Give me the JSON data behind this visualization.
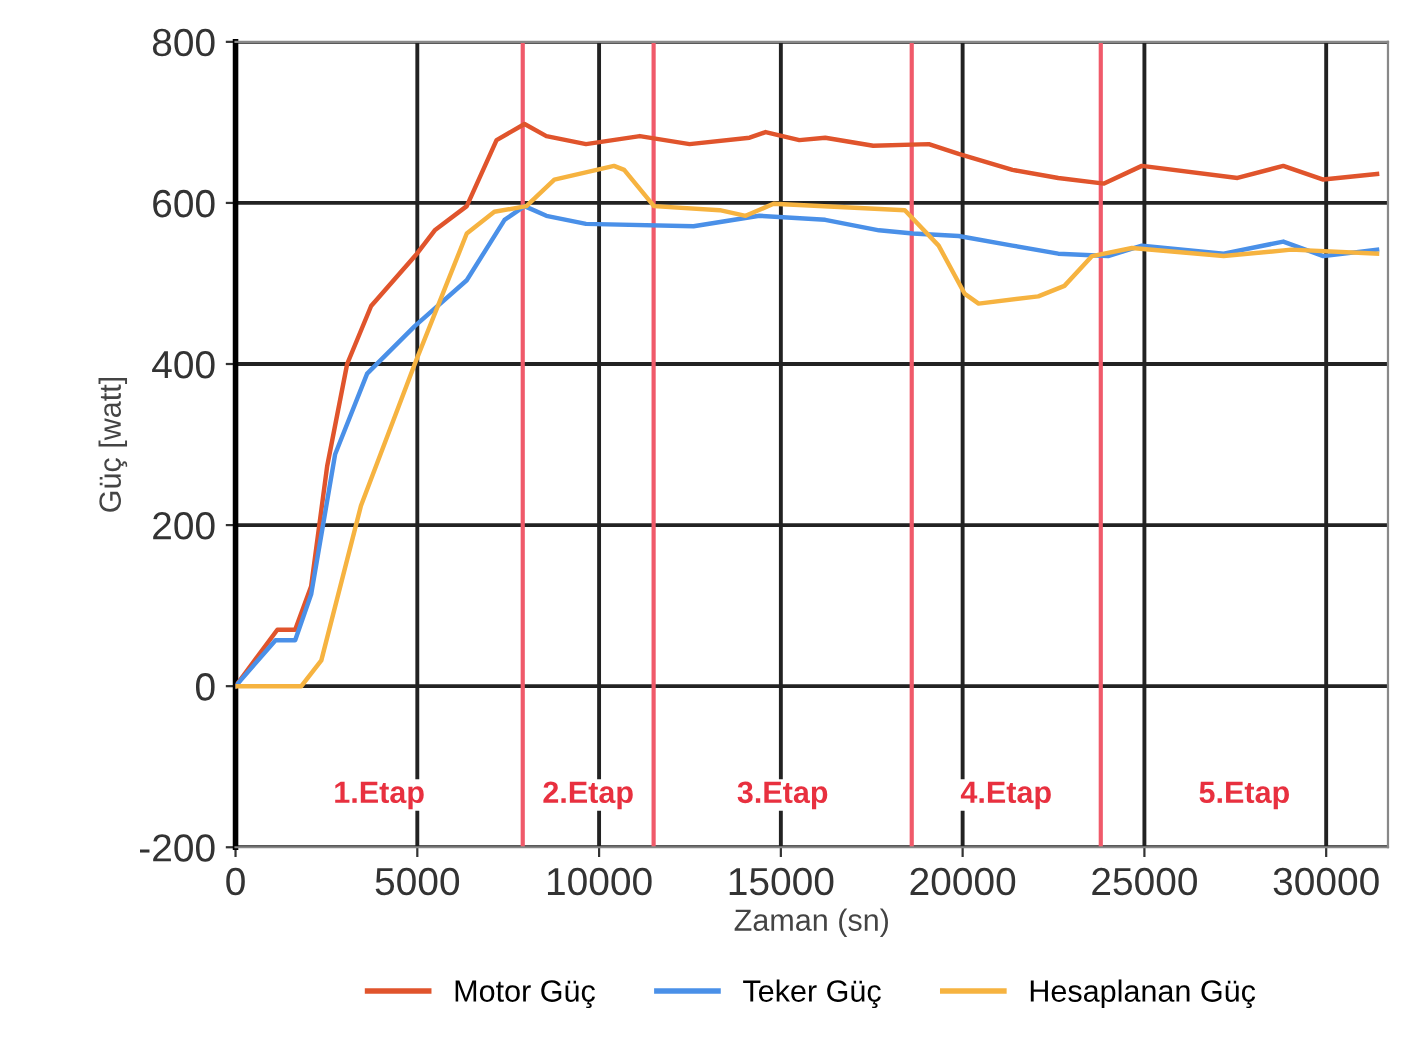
{
  "chart_data": {
    "type": "line",
    "xlabel": "Zaman (sn)",
    "ylabel": "Güç [watt]",
    "xlim": [
      0,
      31700
    ],
    "xticks": [
      0,
      5000,
      10000,
      15000,
      20000,
      25000,
      30000
    ],
    "ylim": [
      -200,
      800
    ],
    "yticks": [
      -200,
      0,
      200,
      400,
      600,
      800
    ],
    "grid": true,
    "legend": "bottom",
    "line_style": "solid",
    "marker": "none",
    "series": [
      {
        "name": "Motor Güç",
        "color": "#e0542c",
        "x": [
          0,
          1150,
          1640,
          2080,
          2520,
          3070,
          3730,
          4990,
          5480,
          6360,
          7180,
          7950,
          8550,
          9640,
          11120,
          12490,
          14140,
          14580,
          15510,
          16220,
          17540,
          19070,
          19890,
          21370,
          22630,
          23890,
          24930,
          27560,
          28820,
          29920,
          31400
        ],
        "values": [
          0,
          70,
          70,
          124,
          273,
          400,
          472,
          537,
          566,
          596,
          678,
          698,
          683,
          673,
          683,
          673,
          681,
          688,
          678,
          681,
          671,
          673,
          661,
          641,
          631,
          624,
          646,
          631,
          646,
          629,
          636
        ]
      },
      {
        "name": "Teker Güç",
        "color": "#4a90e8",
        "x": [
          0,
          1100,
          1640,
          2080,
          2740,
          3620,
          4930,
          6360,
          7400,
          7950,
          8550,
          9640,
          12600,
          14410,
          16220,
          17700,
          18630,
          19890,
          21370,
          22630,
          24000,
          24930,
          27180,
          28820,
          29920,
          31400
        ],
        "values": [
          0,
          57,
          57,
          114,
          288,
          388,
          447,
          504,
          579,
          596,
          584,
          574,
          571,
          584,
          579,
          566,
          562,
          559,
          547,
          537,
          534,
          547,
          537,
          552,
          534,
          542
        ]
      },
      {
        "name": "Hesaplanan Güç",
        "color": "#f6b340",
        "x": [
          0,
          1810,
          2360,
          3450,
          4930,
          6360,
          7120,
          8000,
          8770,
          10410,
          10690,
          11510,
          13320,
          14030,
          14800,
          18410,
          19340,
          20060,
          20440,
          22080,
          22800,
          23560,
          24660,
          27180,
          29040,
          31400
        ],
        "values": [
          0,
          0,
          32,
          224,
          400,
          562,
          589,
          596,
          629,
          646,
          641,
          596,
          591,
          584,
          599,
          591,
          547,
          487,
          475,
          484,
          497,
          534,
          544,
          534,
          542,
          537
        ]
      }
    ],
    "ref_lines": [
      {
        "axis": "x",
        "value": 7900,
        "color": "#f05a6a"
      },
      {
        "axis": "x",
        "value": 11500,
        "color": "#f05a6a"
      },
      {
        "axis": "x",
        "value": 18600,
        "color": "#f05a6a"
      },
      {
        "axis": "x",
        "value": 23800,
        "color": "#f05a6a"
      }
    ],
    "annotations": [
      "1.Etap",
      "2.Etap",
      "3.Etap",
      "4.Etap",
      "5.Etap"
    ]
  }
}
